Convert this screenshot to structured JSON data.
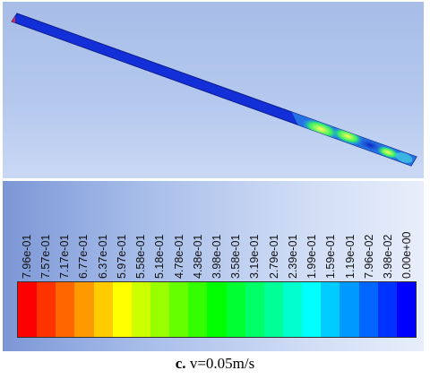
{
  "viewport": {
    "background_colors": [
      "#a7bde7",
      "#c9d8f4"
    ],
    "pipe": {
      "base_color": "#1330d8",
      "inlet_color": "#d42a4a",
      "outlet_color": "#2aa7c8"
    }
  },
  "legend": {
    "tick_labels": [
      "7.96e-01",
      "7.57e-01",
      "7.17e-01",
      "6.77e-01",
      "6.37e-01",
      "5.97e-01",
      "5.58e-01",
      "5.18e-01",
      "4.78e-01",
      "4.38e-01",
      "3.98e-01",
      "3.58e-01",
      "3.19e-01",
      "2.79e-01",
      "2.39e-01",
      "1.99e-01",
      "1.59e-01",
      "1.19e-01",
      "7.96e-02",
      "3.98e-02",
      "0.00e+00"
    ],
    "colors": [
      "#ff0000",
      "#ff3300",
      "#ff6600",
      "#ff9900",
      "#ffcc00",
      "#ffff00",
      "#ccff00",
      "#99ff00",
      "#66ff00",
      "#33ff00",
      "#00ff00",
      "#00ff33",
      "#00ff66",
      "#00ff99",
      "#00ffcc",
      "#00ffff",
      "#00ccff",
      "#0099ff",
      "#0066ff",
      "#0033ff",
      "#0000ff"
    ]
  },
  "caption": {
    "bold": "c.",
    "text": " v=0.05m/s"
  }
}
